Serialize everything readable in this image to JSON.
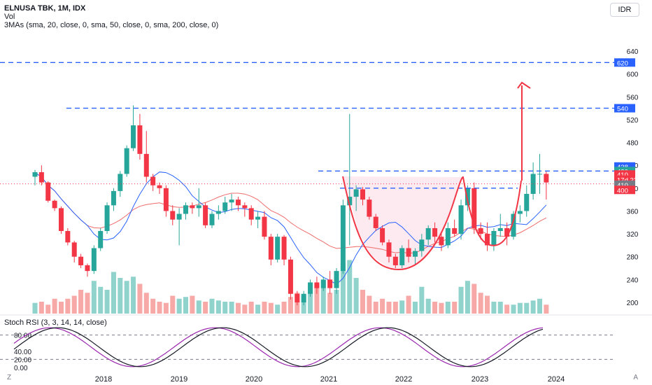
{
  "header": {
    "symbol": "ELNUSA TBK, 1M, IDX",
    "volume_label": "Vol",
    "ma_label": "3MAs (sma, 20, close, 0, sma, 50, close, 0, sma, 200, close, 0)",
    "currency": "IDR"
  },
  "oscillator": {
    "label": "Stoch RSI (3, 3, 14, 14, close)"
  },
  "footer": {
    "z_button": "Z",
    "a_button": "A"
  },
  "colors": {
    "up": "#26a69a",
    "down": "#f23645",
    "up_volume": "#8fd3cc",
    "down_volume": "#f7a9a7",
    "ma20": "#2962ff",
    "ma50": "#f06c6c",
    "level_line": "#2962ff",
    "cup_fill": "#fce4ec",
    "stoch_k": "#9c27b0",
    "stoch_d": "#131722",
    "target_arrow": "#f23645"
  },
  "chart_data": {
    "type": "candlestick",
    "title": "ELNUSA TBK, 1M, IDX",
    "timeframe": "1M",
    "x_ticks": [
      "2018",
      "2019",
      "2020",
      "2021",
      "2022",
      "2023",
      "2024"
    ],
    "y_ticks": [
      200,
      240,
      280,
      320,
      360,
      400,
      440,
      480,
      520,
      560,
      600,
      640
    ],
    "ylim": [
      180,
      650
    ],
    "candles": [
      [
        420,
        432,
        405,
        428
      ],
      [
        428,
        440,
        405,
        410
      ],
      [
        410,
        412,
        375,
        378
      ],
      [
        378,
        380,
        360,
        365
      ],
      [
        365,
        368,
        320,
        325
      ],
      [
        325,
        330,
        300,
        305
      ],
      [
        305,
        308,
        270,
        280
      ],
      [
        280,
        285,
        260,
        265
      ],
      [
        265,
        268,
        245,
        255
      ],
      [
        255,
        300,
        250,
        295
      ],
      [
        295,
        330,
        290,
        325
      ],
      [
        325,
        375,
        320,
        370
      ],
      [
        370,
        400,
        360,
        395
      ],
      [
        395,
        430,
        385,
        425
      ],
      [
        425,
        475,
        420,
        470
      ],
      [
        470,
        545,
        465,
        510
      ],
      [
        510,
        530,
        450,
        460
      ],
      [
        460,
        500,
        410,
        420
      ],
      [
        420,
        425,
        395,
        405
      ],
      [
        405,
        410,
        390,
        400
      ],
      [
        400,
        405,
        350,
        360
      ],
      [
        360,
        370,
        335,
        345
      ],
      [
        345,
        365,
        300,
        355
      ],
      [
        355,
        375,
        345,
        370
      ],
      [
        370,
        375,
        355,
        365
      ],
      [
        365,
        400,
        350,
        370
      ],
      [
        370,
        375,
        330,
        335
      ],
      [
        335,
        360,
        330,
        355
      ],
      [
        355,
        370,
        345,
        360
      ],
      [
        360,
        385,
        355,
        375
      ],
      [
        375,
        390,
        360,
        380
      ],
      [
        380,
        385,
        360,
        370
      ],
      [
        370,
        375,
        350,
        365
      ],
      [
        365,
        370,
        335,
        345
      ],
      [
        345,
        360,
        330,
        350
      ],
      [
        350,
        360,
        310,
        315
      ],
      [
        315,
        320,
        265,
        275
      ],
      [
        275,
        320,
        270,
        315
      ],
      [
        315,
        318,
        265,
        275
      ],
      [
        275,
        280,
        205,
        215
      ],
      [
        215,
        220,
        195,
        200
      ],
      [
        200,
        220,
        195,
        215
      ],
      [
        215,
        240,
        210,
        235
      ],
      [
        235,
        245,
        215,
        225
      ],
      [
        225,
        245,
        220,
        240
      ],
      [
        240,
        255,
        215,
        225
      ],
      [
        225,
        260,
        215,
        255
      ],
      [
        255,
        380,
        250,
        370
      ],
      [
        370,
        530,
        300,
        385
      ],
      [
        385,
        405,
        360,
        398
      ],
      [
        398,
        402,
        370,
        380
      ],
      [
        380,
        385,
        345,
        350
      ],
      [
        350,
        355,
        325,
        330
      ],
      [
        330,
        335,
        300,
        305
      ],
      [
        305,
        310,
        270,
        280
      ],
      [
        280,
        285,
        260,
        265
      ],
      [
        265,
        300,
        260,
        295
      ],
      [
        295,
        310,
        270,
        280
      ],
      [
        280,
        295,
        265,
        290
      ],
      [
        290,
        320,
        280,
        310
      ],
      [
        310,
        335,
        300,
        330
      ],
      [
        330,
        340,
        305,
        315
      ],
      [
        315,
        320,
        290,
        300
      ],
      [
        300,
        340,
        295,
        330
      ],
      [
        330,
        345,
        315,
        320
      ],
      [
        320,
        380,
        310,
        370
      ],
      [
        370,
        405,
        360,
        400
      ],
      [
        400,
        410,
        320,
        330
      ],
      [
        330,
        340,
        310,
        320
      ],
      [
        320,
        340,
        290,
        300
      ],
      [
        300,
        330,
        290,
        325
      ],
      [
        325,
        355,
        315,
        330
      ],
      [
        330,
        340,
        300,
        315
      ],
      [
        315,
        360,
        310,
        355
      ],
      [
        355,
        370,
        340,
        360
      ],
      [
        360,
        405,
        350,
        390
      ],
      [
        390,
        445,
        380,
        425
      ],
      [
        425,
        460,
        390,
        425
      ],
      [
        425,
        430,
        380,
        410
      ]
    ],
    "volume_relative": [
      0.18,
      0.2,
      0.15,
      0.25,
      0.2,
      0.25,
      0.3,
      0.4,
      0.35,
      0.55,
      0.45,
      0.4,
      0.7,
      0.6,
      0.55,
      0.62,
      0.5,
      0.35,
      0.25,
      0.2,
      0.18,
      0.3,
      0.25,
      0.28,
      0.3,
      0.22,
      0.2,
      0.25,
      0.22,
      0.2,
      0.2,
      0.18,
      0.15,
      0.2,
      0.15,
      0.2,
      0.18,
      0.15,
      0.2,
      0.28,
      0.35,
      0.3,
      0.45,
      0.5,
      0.55,
      0.35,
      0.4,
      0.85,
      0.9,
      0.6,
      0.4,
      0.3,
      0.2,
      0.25,
      0.2,
      0.2,
      0.22,
      0.3,
      0.2,
      0.45,
      0.25,
      0.2,
      0.18,
      0.2,
      0.2,
      0.45,
      0.55,
      0.5,
      0.35,
      0.3,
      0.2,
      0.2,
      0.15,
      0.15,
      0.18,
      0.18,
      0.22,
      0.25,
      0.15
    ],
    "price_levels": [
      620,
      540,
      438,
      430,
      410,
      400
    ],
    "axis_badges": [
      "620",
      "540",
      "438",
      "430",
      "410",
      "17d 23h",
      "410",
      "400"
    ],
    "pattern": "cup and handle",
    "stoch_rsi": {
      "y_ticks": [
        "80.00",
        "40.00",
        "20.00",
        "0.00"
      ],
      "bands": [
        80,
        20
      ]
    }
  }
}
